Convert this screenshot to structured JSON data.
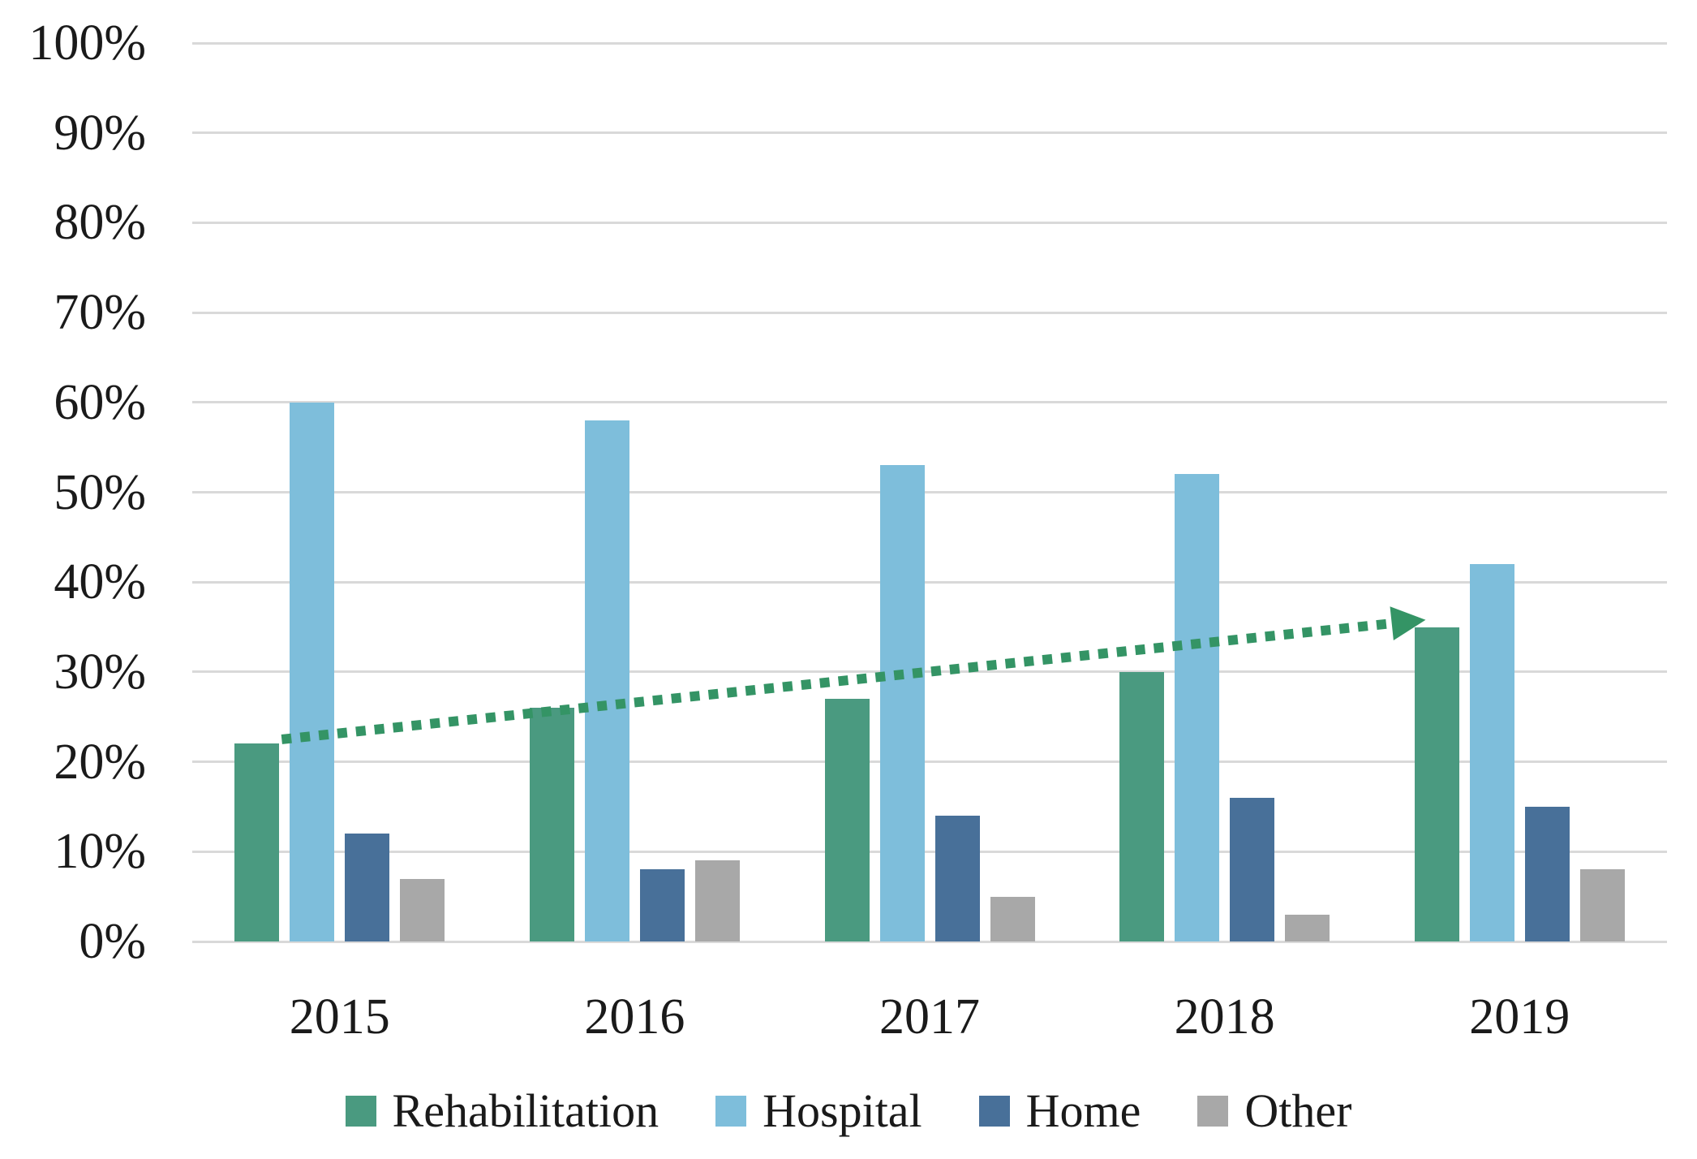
{
  "chart_data": {
    "type": "bar",
    "categories": [
      "2015",
      "2016",
      "2017",
      "2018",
      "2019"
    ],
    "series": [
      {
        "name": "Rehabilitation",
        "color": "#4A9A80",
        "values": [
          22,
          26,
          27,
          30,
          35
        ]
      },
      {
        "name": "Hospital",
        "color": "#7EBEDB",
        "values": [
          60,
          58,
          53,
          52,
          42
        ]
      },
      {
        "name": "Home",
        "color": "#487099",
        "values": [
          12,
          8,
          14,
          16,
          15
        ]
      },
      {
        "name": "Other",
        "color": "#A8A8A8",
        "values": [
          7,
          9,
          5,
          3,
          8
        ]
      }
    ],
    "y_ticks": [
      "100%",
      "90%",
      "80%",
      "70%",
      "60%",
      "50%",
      "40%",
      "30%",
      "20%",
      "10%",
      "0%"
    ],
    "ylim": [
      0,
      100
    ],
    "grid": true,
    "legend_position": "bottom",
    "legend_entries": [
      "Rehabilitation",
      "Hospital",
      "Home",
      "Other"
    ],
    "trendline": {
      "series": "Rehabilitation",
      "style": "dotted",
      "arrow": true,
      "color": "#349465",
      "start": {
        "category": "2015",
        "value": 22.5
      },
      "end": {
        "category": "2019",
        "value": 35.4
      }
    }
  },
  "colors": {
    "gridline": "#D9D9D9",
    "text": "#1A1A1A",
    "background": "#FFFFFF"
  }
}
